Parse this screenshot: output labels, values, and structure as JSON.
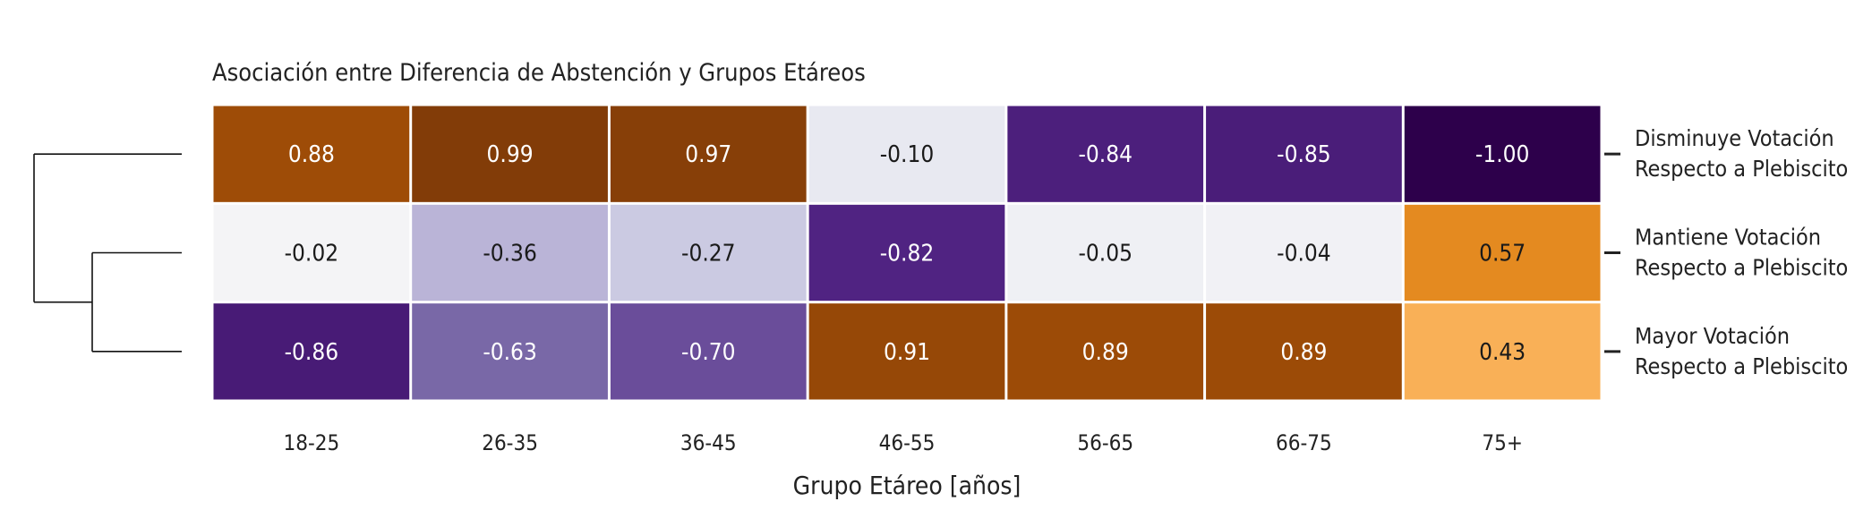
{
  "chart_data": {
    "type": "heatmap",
    "title": "Asociación entre Diferencia de Abstención y Grupos Etáreos",
    "xlabel": "Grupo Etáreo [años]",
    "ylabel": "",
    "x_categories": [
      "18-25",
      "26-35",
      "36-45",
      "46-55",
      "56-65",
      "66-75",
      "75+"
    ],
    "y_categories": [
      [
        "Disminuye Votación",
        "Respecto a Plebiscito"
      ],
      [
        "Mantiene Votación",
        "Respecto a Plebiscito"
      ],
      [
        "Mayor Votación",
        "Respecto a Plebiscito"
      ]
    ],
    "values": [
      [
        0.88,
        0.99,
        0.97,
        -0.1,
        -0.84,
        -0.85,
        -1.0
      ],
      [
        -0.02,
        -0.36,
        -0.27,
        -0.82,
        -0.05,
        -0.04,
        0.57
      ],
      [
        -0.86,
        -0.63,
        -0.7,
        0.91,
        0.89,
        0.89,
        0.43
      ]
    ],
    "value_format": "2 decimals",
    "value_range": [
      -1,
      1
    ],
    "colormap": "PuOr_r",
    "colors": {
      "negative_end": "#2d004b",
      "neutral": "#f7f7f7",
      "positive_end": "#7f3b08"
    },
    "row_dendrogram": true,
    "grid": false,
    "legend": "none"
  }
}
